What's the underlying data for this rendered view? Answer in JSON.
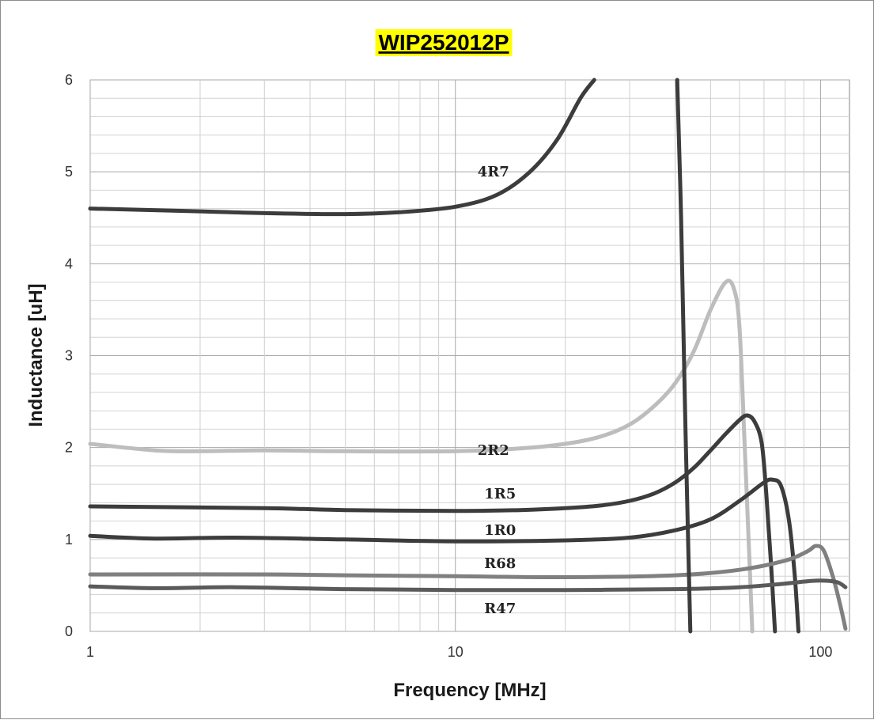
{
  "chart_data": {
    "type": "line",
    "title": "WIP252012P",
    "title_highlight": "#ffff00",
    "xlabel": "Frequency [MHz]",
    "ylabel": "Inductance [uH]",
    "x_scale": "log",
    "xlim": [
      1,
      120
    ],
    "ylim": [
      0,
      6
    ],
    "x_ticks": [
      1,
      10,
      100
    ],
    "x_tick_labels": [
      "1",
      "10",
      "100"
    ],
    "y_ticks": [
      0,
      1,
      2,
      3,
      4,
      5,
      6
    ],
    "y_tick_labels": [
      "0",
      "1",
      "2",
      "3",
      "4",
      "5",
      "6"
    ],
    "grid": true,
    "legend": "inline labels",
    "series": [
      {
        "name": "4R7",
        "color": "#3c3c3c",
        "label_at": [
          11.5,
          5.0
        ],
        "points": [
          [
            1,
            4.6
          ],
          [
            2,
            4.57
          ],
          [
            3,
            4.55
          ],
          [
            5,
            4.54
          ],
          [
            7,
            4.56
          ],
          [
            10,
            4.62
          ],
          [
            13,
            4.75
          ],
          [
            16,
            5.0
          ],
          [
            19,
            5.35
          ],
          [
            22,
            5.8
          ],
          [
            24,
            6.0
          ]
        ]
      },
      {
        "name": "2R2",
        "color": "#bdbdbd",
        "label_at": [
          11.5,
          1.97
        ],
        "points": [
          [
            1,
            2.04
          ],
          [
            1.5,
            1.97
          ],
          [
            2,
            1.96
          ],
          [
            3,
            1.97
          ],
          [
            5,
            1.96
          ],
          [
            10,
            1.96
          ],
          [
            15,
            1.99
          ],
          [
            20,
            2.04
          ],
          [
            25,
            2.12
          ],
          [
            30,
            2.25
          ],
          [
            35,
            2.45
          ],
          [
            40,
            2.7
          ],
          [
            45,
            3.05
          ],
          [
            50,
            3.5
          ],
          [
            55,
            3.8
          ],
          [
            58,
            3.72
          ],
          [
            60,
            3.3
          ],
          [
            62,
            2.0
          ],
          [
            64,
            0.7
          ],
          [
            65,
            0.0
          ]
        ]
      },
      {
        "name": "1R5",
        "color": "#3c3c3c",
        "label_at": [
          12,
          1.5
        ],
        "points": [
          [
            1,
            1.36
          ],
          [
            3,
            1.34
          ],
          [
            5,
            1.32
          ],
          [
            10,
            1.31
          ],
          [
            15,
            1.32
          ],
          [
            20,
            1.34
          ],
          [
            25,
            1.37
          ],
          [
            30,
            1.42
          ],
          [
            35,
            1.5
          ],
          [
            40,
            1.62
          ],
          [
            45,
            1.78
          ],
          [
            50,
            1.97
          ],
          [
            55,
            2.15
          ],
          [
            60,
            2.3
          ],
          [
            63,
            2.35
          ],
          [
            66,
            2.28
          ],
          [
            69,
            2.05
          ],
          [
            71,
            1.5
          ],
          [
            73,
            0.8
          ],
          [
            75,
            0.0
          ]
        ]
      },
      {
        "name": "1R0",
        "color": "#3c3c3c",
        "label_at": [
          12,
          1.1
        ],
        "points": [
          [
            1,
            1.04
          ],
          [
            1.5,
            1.01
          ],
          [
            2.5,
            1.02
          ],
          [
            5,
            1.0
          ],
          [
            10,
            0.98
          ],
          [
            20,
            0.99
          ],
          [
            30,
            1.02
          ],
          [
            40,
            1.1
          ],
          [
            50,
            1.22
          ],
          [
            60,
            1.42
          ],
          [
            70,
            1.62
          ],
          [
            74,
            1.65
          ],
          [
            78,
            1.58
          ],
          [
            82,
            1.2
          ],
          [
            85,
            0.6
          ],
          [
            87,
            0.0
          ]
        ]
      },
      {
        "name": "R68",
        "color": "#808080",
        "label_at": [
          12,
          0.74
        ],
        "points": [
          [
            1,
            0.62
          ],
          [
            3,
            0.62
          ],
          [
            5,
            0.61
          ],
          [
            10,
            0.6
          ],
          [
            20,
            0.59
          ],
          [
            40,
            0.61
          ],
          [
            60,
            0.67
          ],
          [
            80,
            0.77
          ],
          [
            92,
            0.87
          ],
          [
            97,
            0.93
          ],
          [
            102,
            0.88
          ],
          [
            108,
            0.6
          ],
          [
            113,
            0.3
          ],
          [
            117,
            0.03
          ]
        ]
      },
      {
        "name": "R47",
        "color": "#5a5a5a",
        "label_at": [
          12,
          0.25
        ],
        "points": [
          [
            1,
            0.49
          ],
          [
            1.5,
            0.47
          ],
          [
            2.5,
            0.48
          ],
          [
            5,
            0.46
          ],
          [
            10,
            0.45
          ],
          [
            20,
            0.45
          ],
          [
            40,
            0.46
          ],
          [
            60,
            0.48
          ],
          [
            80,
            0.52
          ],
          [
            95,
            0.55
          ],
          [
            105,
            0.55
          ],
          [
            112,
            0.53
          ],
          [
            117,
            0.48
          ]
        ]
      },
      {
        "name": "",
        "color": "#3c3c3c",
        "label_at": null,
        "points": [
          [
            40.5,
            6.0
          ],
          [
            41.5,
            4.5
          ],
          [
            42.5,
            2.5
          ],
          [
            43.5,
            0.8
          ],
          [
            44.0,
            0.0
          ]
        ]
      }
    ]
  }
}
